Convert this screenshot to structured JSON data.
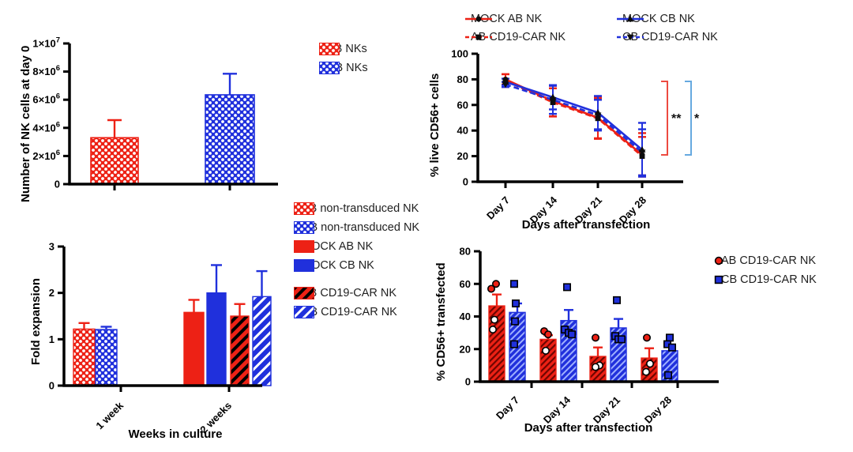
{
  "figure_title": "NK cell expansion and CD19-CAR transfection figure",
  "colors": {
    "red": "#ED2115",
    "blue": "#2030DC",
    "dark_red_hatch": "#6E0500",
    "light_blue_hatch": "#9FB0FF",
    "axis": "#000000",
    "marker": "#0d0d0d",
    "bracket_red": "#ED4A40",
    "bracket_blue": "#66A9E0",
    "legend_text": "#1f1f1f"
  },
  "chart_data": [
    {
      "id": "nk_day0",
      "type": "bar",
      "ylabel": "Number of NK cells at day 0",
      "xlabel": "",
      "ylim": [
        0,
        10000000
      ],
      "ytick_labels": [
        "0",
        "2×10^6",
        "4×10^6",
        "6×10^6",
        "8×10^6",
        "1×10^7"
      ],
      "categories": [
        "AB NKs",
        "CB NKs"
      ],
      "values": [
        3300000,
        6350000
      ],
      "errors": [
        1250000,
        1500000
      ],
      "bar_styles": [
        "dot-red",
        "dot-blue"
      ],
      "legend": [
        {
          "label": "AB NKs",
          "swatch": "dot-red"
        },
        {
          "label": "CB NKs",
          "swatch": "dot-blue"
        }
      ]
    },
    {
      "id": "live_cd56",
      "type": "line",
      "ylabel": "% live CD56+ cells",
      "xlabel": "Days after transfection",
      "ylim": [
        0,
        100
      ],
      "ytick_labels": [
        "0",
        "20",
        "40",
        "60",
        "80",
        "100"
      ],
      "categories": [
        "Day 7",
        "Day 14",
        "Day 21",
        "Day 28"
      ],
      "series": [
        {
          "name": "MOCK AB NK",
          "color": "red",
          "dash": "solid",
          "marker": "circle",
          "values": [
            80,
            63,
            50,
            21
          ],
          "err": [
            4,
            12,
            16.5,
            17
          ]
        },
        {
          "name": "AB CD19-CAR NK",
          "color": "red",
          "dash": "dashed",
          "marker": "square",
          "values": [
            79,
            62,
            49.5,
            20
          ],
          "err": [
            5,
            11,
            15.5,
            15
          ]
        },
        {
          "name": "MOCK CB NK",
          "color": "blue",
          "dash": "solid",
          "marker": "triangle",
          "values": [
            78,
            66,
            54,
            25
          ],
          "err": [
            2.5,
            9.5,
            13,
            21
          ]
        },
        {
          "name": "CB CD19-CAR NK",
          "color": "blue",
          "dash": "dashed",
          "marker": "triangle-down",
          "values": [
            76,
            64,
            52,
            23
          ],
          "err": [
            2,
            11,
            12,
            18
          ]
        }
      ],
      "annotations": [
        {
          "type": "bracket",
          "color": "bracket_red",
          "label": "**"
        },
        {
          "type": "bracket",
          "color": "bracket_blue",
          "label": "*"
        }
      ]
    },
    {
      "id": "fold_expansion",
      "type": "grouped-bar",
      "ylabel": "Fold expansion",
      "xlabel": "Weeks in culture",
      "ylim": [
        0,
        3
      ],
      "ytick_labels": [
        "0",
        "1",
        "2",
        "3"
      ],
      "groups": [
        {
          "label": "1 week",
          "bars": [
            {
              "series": "AB non-transduced NK",
              "style": "dot-red",
              "value": 1.22,
              "err": 0.13
            },
            {
              "series": "CB non-transduced NK",
              "style": "dot-blue",
              "value": 1.21,
              "err": 0.06
            }
          ]
        },
        {
          "label": "2 weeks",
          "bars": [
            {
              "series": "MOCK AB NK",
              "style": "solid-red",
              "value": 1.58,
              "err": 0.27
            },
            {
              "series": "MOCK CB NK",
              "style": "solid-blue",
              "value": 2.0,
              "err": 0.6
            },
            {
              "series": "AB CD19-CAR NK",
              "style": "hatch-red",
              "value": 1.5,
              "err": 0.26
            },
            {
              "series": "CB CD19-CAR NK",
              "style": "hatch-blue",
              "value": 1.92,
              "err": 0.55
            }
          ]
        }
      ],
      "legend": [
        {
          "label": "AB non-transduced NK",
          "swatch": "dot-red"
        },
        {
          "label": "CB non-transduced NK",
          "swatch": "dot-blue"
        },
        {
          "label": "MOCK AB NK",
          "swatch": "solid-red"
        },
        {
          "label": "MOCK CB NK",
          "swatch": "solid-blue"
        },
        {
          "label": "AB CD19-CAR NK",
          "swatch": "hatch-red"
        },
        {
          "label": "CB CD19-CAR NK",
          "swatch": "hatch-blue"
        }
      ]
    },
    {
      "id": "cd56_transfected",
      "type": "grouped-bar-scatter",
      "ylabel": "% CD56+ transfected",
      "xlabel": "Days after transfection",
      "ylim": [
        0,
        80
      ],
      "ytick_labels": [
        "0",
        "20",
        "40",
        "60",
        "80"
      ],
      "categories": [
        "Day 7",
        "Day 14",
        "Day 21",
        "Day 28"
      ],
      "series": [
        {
          "name": "AB CD19-CAR NK",
          "style": "fhatch-red",
          "marker": "circle-red",
          "values": [
            46.5,
            26,
            15.5,
            14.5
          ],
          "err": [
            7,
            2.5,
            5.5,
            6
          ],
          "points": [
            [
              [
                57,
                -7
              ],
              [
                60,
                -1
              ],
              [
                38,
                -3
              ],
              [
                32,
                -5
              ]
            ],
            [
              [
                31,
                -5
              ],
              [
                29,
                0
              ],
              [
                19,
                -3
              ]
            ],
            [
              [
                27,
                -3
              ],
              [
                10,
                2
              ],
              [
                9,
                -3
              ]
            ],
            [
              [
                27,
                -3
              ],
              [
                11,
                1
              ],
              [
                6,
                -4
              ]
            ]
          ]
        },
        {
          "name": "CB CD19-CAR NK",
          "style": "fhatch-blue",
          "marker": "square-blue",
          "values": [
            42.5,
            37.5,
            33,
            19
          ],
          "err": [
            5.5,
            6.5,
            5.5,
            3.5
          ],
          "points": [
            [
              [
                60,
                -4
              ],
              [
                48,
                -2
              ],
              [
                37,
                -3
              ],
              [
                23,
                -4
              ]
            ],
            [
              [
                58,
                -2
              ],
              [
                32,
                -5
              ],
              [
                30,
                0
              ],
              [
                29,
                4
              ]
            ],
            [
              [
                50,
                -2
              ],
              [
                28,
                -4
              ],
              [
                26,
                0
              ],
              [
                26,
                4
              ]
            ],
            [
              [
                27,
                0
              ],
              [
                23,
                -3
              ],
              [
                21,
                3
              ],
              [
                4,
                -2
              ]
            ]
          ]
        }
      ],
      "legend": [
        {
          "label": "AB CD19-CAR NK",
          "marker": "circle-red"
        },
        {
          "label": "CB CD19-CAR NK",
          "marker": "square-blue"
        }
      ]
    }
  ]
}
